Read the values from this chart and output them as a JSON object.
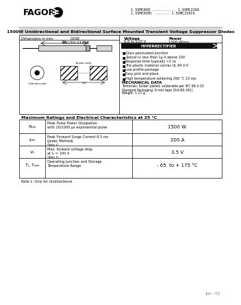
{
  "title_line1": "1.5SMC6V8 ........... 1.5SMC220A",
  "title_line2": "1.5SMC6V8C ....... 1.5SMC220CA",
  "main_title": "1500W Unidirectional and Bidirectional Surface Mounted Transient Voltage Suppressor Diodes",
  "features": [
    "Glass passivated junction",
    "Typical I₂₂ less than 1μ A above 10V",
    "Response time typically <1 ns",
    "The plastic material carries UL 94 V-0",
    "Low profile package",
    "Easy pick and place",
    "High temperature soldering 260 °C 10 sec"
  ],
  "mech_title": "MECHANICAL DATA",
  "mech_text": "Terminals: Solder plated, solderable per IEC 68-2-20\nStandard Packaging: 8 mm tape (EIA-RS 481)\nWeight: 1.11 g",
  "table_title": "Maximum Ratings and Electrical Characteristics at 25 °C",
  "rows": [
    {
      "symbol": "Pₚₚₕ",
      "description": "Peak Pulse Power Dissipation\nwith 10/1000 μs exponential pulse",
      "note": "",
      "value": "1500 W"
    },
    {
      "symbol": "Iₚₚₕ",
      "description": "Peak Forward Surge Current 8.3 ms\n(Jedec Method)",
      "note": "(Note 1)",
      "value": "200 A"
    },
    {
      "symbol": "Vₙ",
      "description": "Max. forward voltage drop\nat Iₙ = 100 A",
      "note": "(Note 1)",
      "value": "3.5 V"
    },
    {
      "symbol": "Tⱼ, Tₚₚₕ",
      "description": "Operating Junction and Storage\nTemperature Range",
      "note": "",
      "value": "- 65  to + 175 °C"
    }
  ],
  "note": "Note 1: Only for Unidirectional",
  "date": "Jun - 03",
  "bg_color": "#ffffff"
}
